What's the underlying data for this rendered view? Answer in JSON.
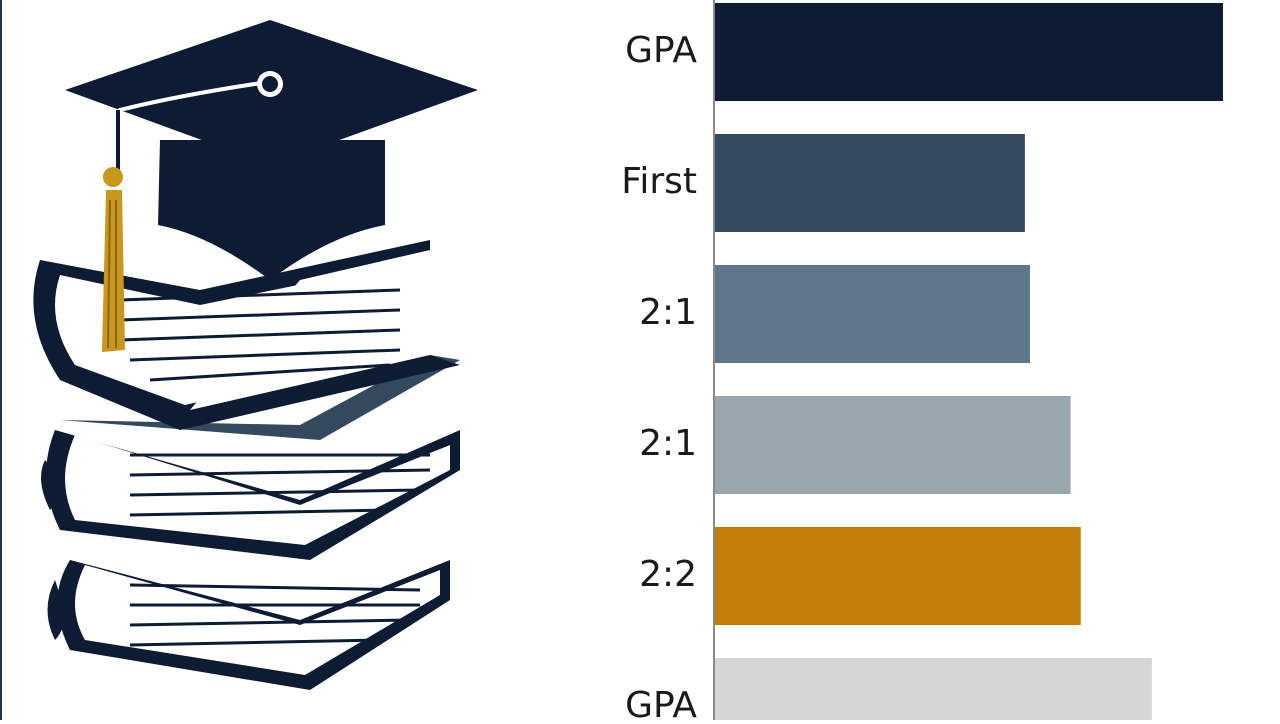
{
  "chart_data": {
    "type": "barh",
    "categories": [
      "GPA",
      "First",
      "2:1",
      "2:1",
      "2:2",
      "GPA"
    ],
    "values": [
      100,
      61,
      62,
      70,
      72,
      86
    ],
    "colors": [
      "#0d1b33",
      "#34495e",
      "#5f7889",
      "#9aa7af",
      "#c17f0a",
      "#d6d6d6"
    ],
    "xlim": [
      0,
      100
    ]
  }
}
